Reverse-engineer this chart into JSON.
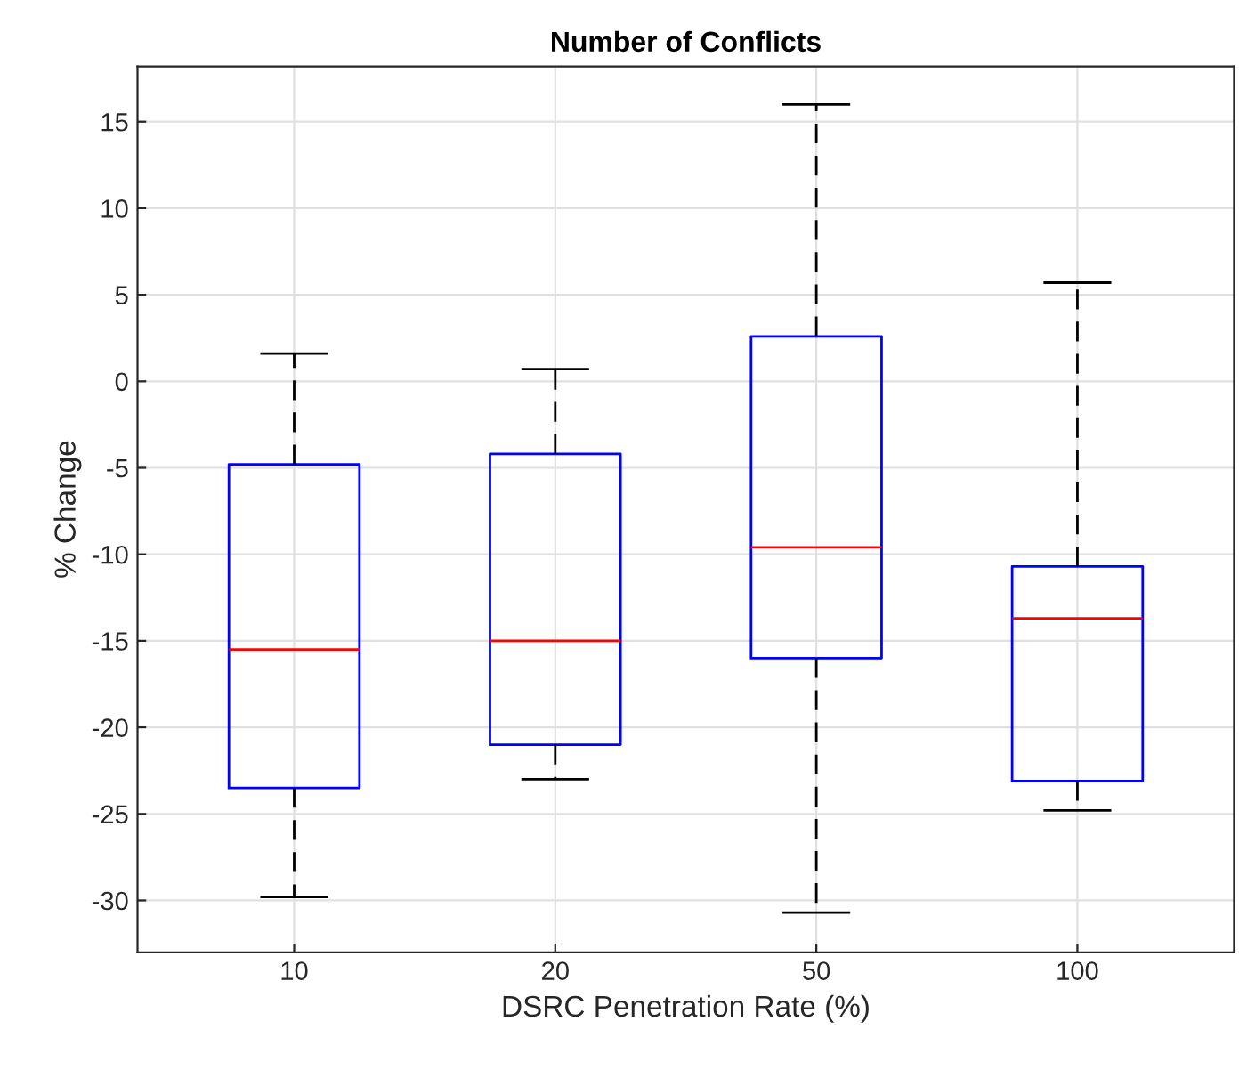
{
  "chart_data": {
    "type": "box",
    "title": "Number of Conflicts",
    "xlabel": "DSRC Penetration Rate (%)",
    "ylabel": "% Change",
    "categories": [
      "10",
      "20",
      "50",
      "100"
    ],
    "boxes": [
      {
        "low": -29.8,
        "q1": -23.5,
        "median": -15.5,
        "q3": -4.8,
        "high": 1.6
      },
      {
        "low": -23.0,
        "q1": -21.0,
        "median": -15.0,
        "q3": -4.2,
        "high": 0.7
      },
      {
        "low": -30.7,
        "q1": -16.0,
        "median": -9.6,
        "q3": 2.6,
        "high": 16.0
      },
      {
        "low": -24.8,
        "q1": -23.1,
        "median": -13.7,
        "q3": -10.7,
        "high": 5.7
      }
    ],
    "color": "#0000ff",
    "ylim": [
      -33,
      18.2
    ],
    "yticks": [
      -30,
      -25,
      -20,
      -15,
      -10,
      -5,
      0,
      5,
      10,
      15
    ],
    "grid": true
  }
}
